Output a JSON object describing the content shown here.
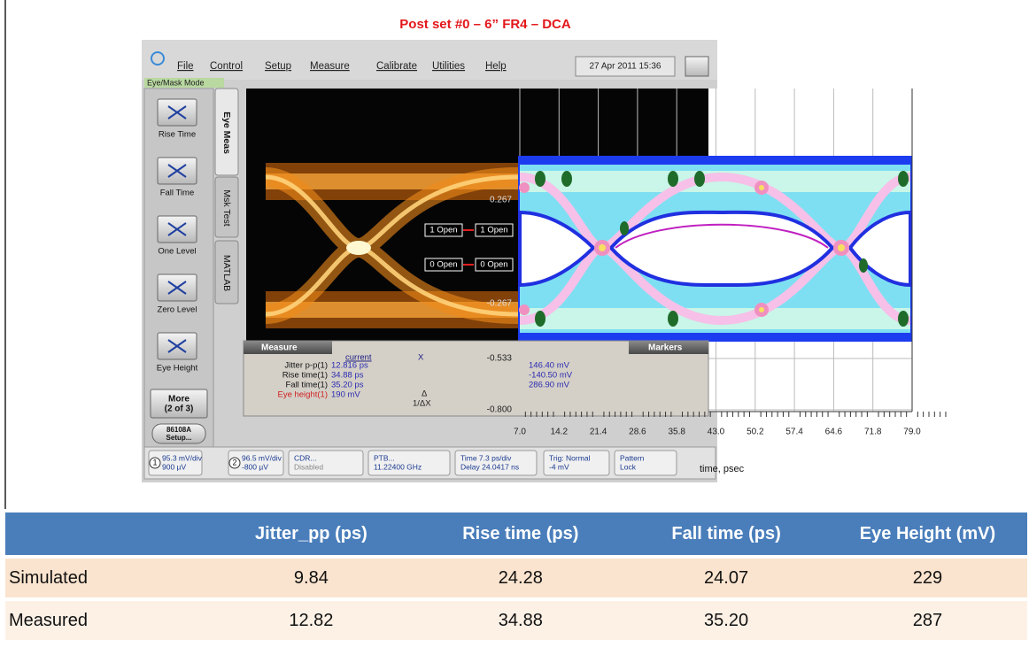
{
  "title": "Post set #0  – 6” FR4 – DCA",
  "scope": {
    "menu": [
      "File",
      "Control",
      "Setup",
      "Measure",
      "Calibrate",
      "Utilities",
      "Help"
    ],
    "datetime": "27 Apr 2011  15:36",
    "mode": "Eye/Mask Mode",
    "buttons": [
      "Rise Time",
      "Fall Time",
      "One Level",
      "Zero Level",
      "Eye Height"
    ],
    "more": [
      "More",
      "(2 of 3)"
    ],
    "setup": [
      "86108A",
      "Setup..."
    ],
    "tabs": [
      "Eye Meas",
      "Msk Test",
      "MATLAB"
    ],
    "markers": [
      "1 Open",
      "1 Open",
      "0 Open",
      "0 Open"
    ],
    "measure": {
      "title": "Measure",
      "col_current": "current",
      "col_x": "X",
      "rows": [
        [
          "Jitter p-p(1)",
          "12.816 ps"
        ],
        [
          "Rise time(1)",
          "34.88 ps"
        ],
        [
          "Fall time(1)",
          "35.20 ps"
        ],
        [
          "Eye height(1)",
          "190 mV"
        ]
      ],
      "delta": "Δ",
      "inv_delta": "1/ΔX",
      "marker_values": [
        "146.40 mV",
        "-140.50 mV",
        "286.90 mV"
      ],
      "markers_title": "Markers"
    },
    "channels": [
      "1",
      "2"
    ],
    "status": [
      [
        "95.3 mV/div",
        "900 µV"
      ],
      [
        "96.5 mV/div",
        "-800 µV"
      ],
      [
        "CDR...",
        "Disabled"
      ],
      [
        "PTB...",
        "11.22400 GHz"
      ],
      [
        "Time 7.3 ps/div",
        "Delay 24.0417 ns"
      ],
      [
        "Trig: Normal",
        "-4 mV"
      ],
      [
        "Pattern",
        "Lock"
      ]
    ]
  },
  "eye_plot": {
    "yticks": [
      "0.267",
      "-0.267",
      "-0.533",
      "-0.800"
    ],
    "xticks": [
      "7.0",
      "14.2",
      "21.4",
      "28.6",
      "35.8",
      "43.0",
      "50.2",
      "57.4",
      "64.6",
      "71.8",
      "79.0"
    ],
    "xlabel": "time, psec"
  },
  "table": {
    "header": [
      "Jitter_pp (ps)",
      "Rise time (ps)",
      "Fall time (ps)",
      "Eye Height (mV)"
    ],
    "rows": [
      [
        "Simulated",
        "9.84",
        "24.28",
        "24.07",
        "229"
      ],
      [
        "Measured",
        "12.82",
        "34.88",
        "35.20",
        "287"
      ]
    ]
  }
}
